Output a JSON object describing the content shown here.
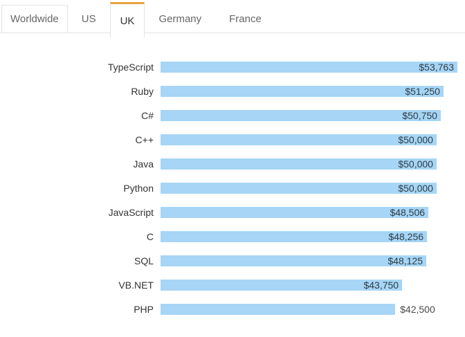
{
  "tabs": [
    {
      "label": "Worldwide",
      "active": false,
      "boxed": true
    },
    {
      "label": "US",
      "active": false,
      "boxed": false
    },
    {
      "label": "UK",
      "active": true,
      "boxed": false
    },
    {
      "label": "Germany",
      "active": false,
      "boxed": false
    },
    {
      "label": "France",
      "active": false,
      "boxed": false
    }
  ],
  "chart_data": {
    "type": "bar",
    "orientation": "horizontal",
    "title": "",
    "xlabel": "",
    "ylabel": "",
    "categories": [
      "TypeScript",
      "Ruby",
      "C#",
      "C++",
      "Java",
      "Python",
      "JavaScript",
      "C",
      "SQL",
      "VB.NET",
      "PHP"
    ],
    "values": [
      53763,
      51250,
      50750,
      50000,
      50000,
      50000,
      48506,
      48256,
      48125,
      43750,
      42500
    ],
    "value_labels": [
      "$53,763",
      "$51,250",
      "$50,750",
      "$50,000",
      "$50,000",
      "$50,000",
      "$48,506",
      "$48,256",
      "$48,125",
      "$43,750",
      "$42,500"
    ],
    "outside_label_indices": [
      10
    ],
    "xlim": [
      0,
      53763
    ],
    "grid": false,
    "legend_position": "none"
  },
  "colors": {
    "accent": "#e6a23c",
    "bar": "#a6d5f5",
    "border": "#e4e4e4",
    "tab_text": "#666666",
    "active_tab_text": "#333333",
    "category_text": "#333333",
    "value_text": "#2d3c47",
    "outside_value_text": "#4a4a4a"
  }
}
